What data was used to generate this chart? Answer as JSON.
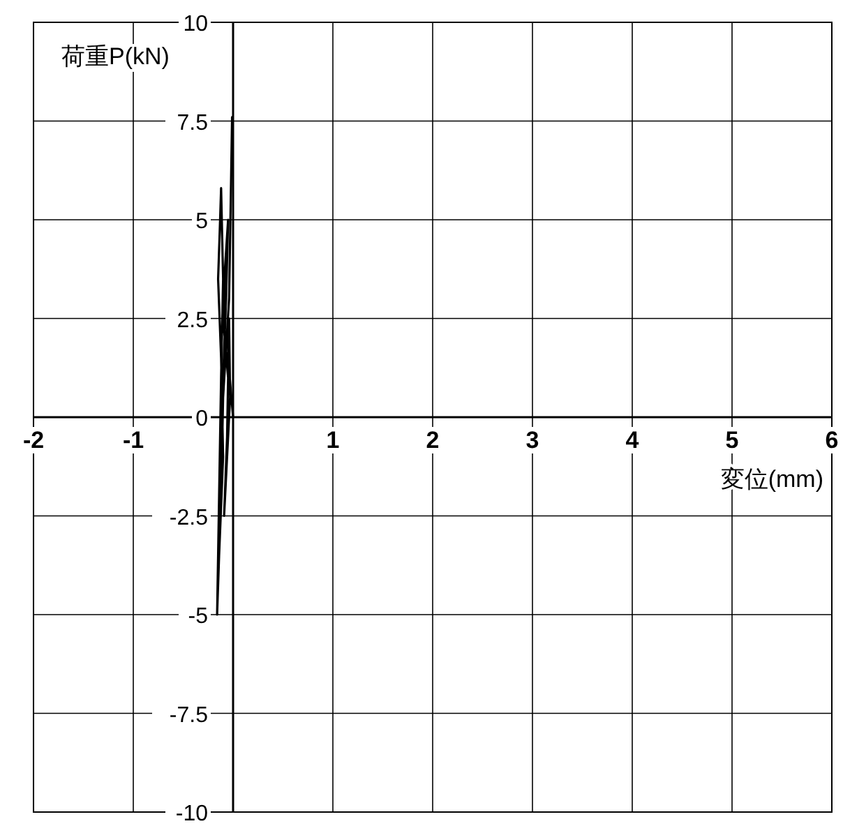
{
  "chart_data": {
    "type": "line",
    "xlabel": "変位(mm)",
    "ylabel": "荷重P(kN)",
    "xlim": [
      -2,
      6
    ],
    "ylim": [
      -10,
      10
    ],
    "xticks": [
      -2,
      -1,
      {
        "value": 0,
        "label": null
      },
      1,
      2,
      3,
      4,
      5,
      6
    ],
    "yticks": [
      -10,
      -7.5,
      -5,
      -2.5,
      0,
      2.5,
      5,
      7.5,
      10
    ],
    "grid": true,
    "series": [
      {
        "color": "#000000",
        "x": [
          0,
          -0.05,
          -0.04,
          -0.03,
          -0.07,
          -0.09,
          -0.06,
          -0.05,
          -0.1,
          -0.08,
          -0.05,
          -0.07,
          -0.1,
          -0.12,
          -0.14,
          -0.1,
          -0.12,
          -0.15,
          -0.13,
          -0.12,
          -0.1,
          -0.12,
          -0.14,
          -0.16,
          -0.12,
          -0.1,
          -0.04,
          -0.02,
          -0.01
        ],
        "values": [
          0,
          1.5,
          2.5,
          0.5,
          -1.5,
          -2.5,
          -0.5,
          1,
          2.5,
          3.8,
          5,
          3,
          1,
          -1.5,
          -3.5,
          -1,
          1.5,
          3.5,
          5,
          5.8,
          3.5,
          1,
          -2,
          -5,
          -2,
          0.5,
          3,
          6,
          7.6
        ]
      }
    ]
  }
}
